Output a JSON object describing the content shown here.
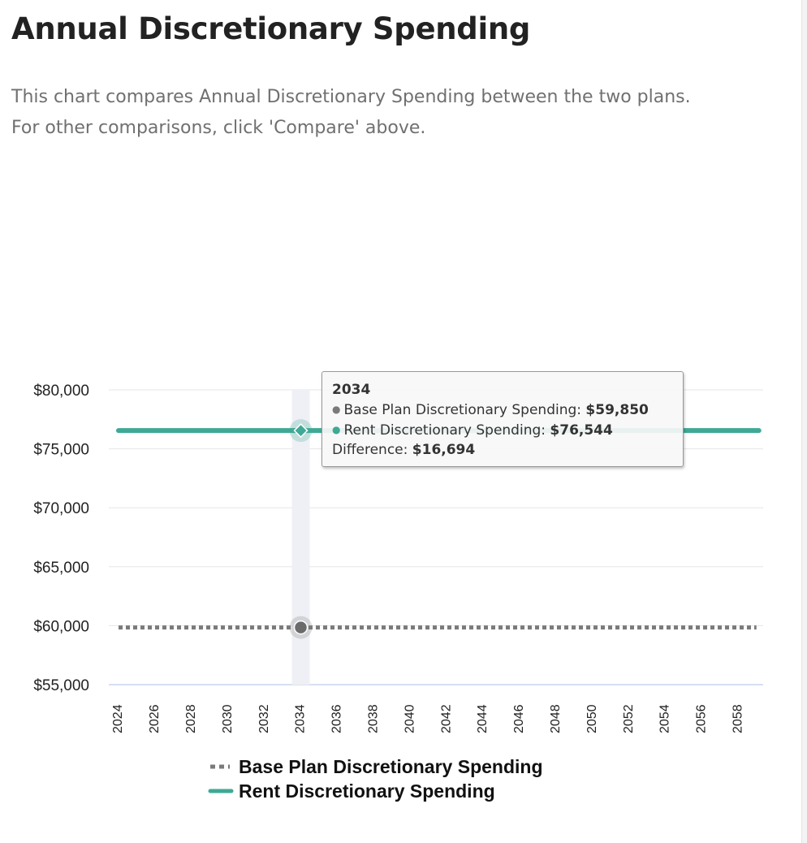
{
  "page": {
    "title": "Annual Discretionary Spending",
    "description_line1": "This chart compares Annual Discretionary Spending between the two plans.",
    "description_line2": "For other comparisons, click 'Compare' above."
  },
  "colors": {
    "base": "#7a7a7a",
    "rent": "#3fa995",
    "grid": "#e6e6e6",
    "axis": "#ccd6eb",
    "crosshair": "#eef0f5"
  },
  "tooltip": {
    "year": "2034",
    "base_label": "Base Plan Discretionary Spending:",
    "base_value": "$59,850",
    "rent_label": "Rent Discretionary Spending:",
    "rent_value": "$76,544",
    "diff_label": "Difference:",
    "diff_value": "$16,694"
  },
  "chart_data": {
    "type": "line",
    "title": "Annual Discretionary Spending",
    "xlabel": "",
    "ylabel": "",
    "x_start": 2024,
    "x_end": 2059,
    "x_tick_labels": [
      "2024",
      "2026",
      "2028",
      "2030",
      "2032",
      "2034",
      "2036",
      "2038",
      "2040",
      "2042",
      "2044",
      "2046",
      "2048",
      "2050",
      "2052",
      "2054",
      "2056",
      "2058"
    ],
    "y_tick_values": [
      55000,
      60000,
      65000,
      70000,
      75000,
      80000
    ],
    "y_tick_labels": [
      "$55,000",
      "$60,000",
      "$65,000",
      "$70,000",
      "$75,000",
      "$80,000"
    ],
    "ylim": [
      55000,
      80000
    ],
    "grid": true,
    "legend_position": "bottom-center",
    "highlight_x": 2034,
    "series": [
      {
        "name": "Base Plan Discretionary Spending",
        "style": "dotted",
        "color": "#7a7a7a",
        "value": 59850
      },
      {
        "name": "Rent Discretionary Spending",
        "style": "solid",
        "color": "#3fa995",
        "value": 76544
      }
    ]
  }
}
